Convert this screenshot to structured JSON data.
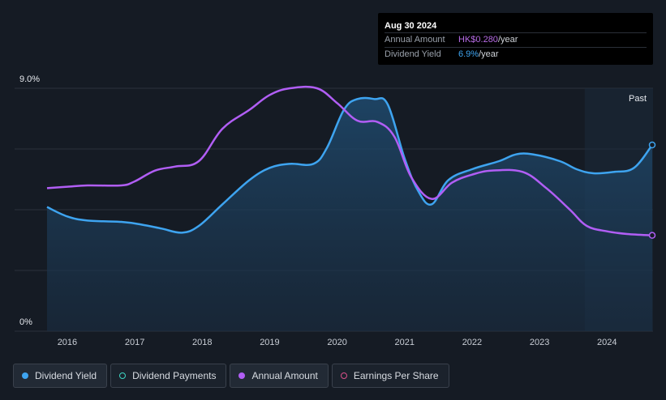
{
  "tooltip": {
    "date": "Aug 30 2024",
    "amount_label": "Annual Amount",
    "amount_value": "HK$0.280",
    "amount_unit": "/year",
    "yield_label": "Dividend Yield",
    "yield_value": "6.9%",
    "yield_unit": "/year"
  },
  "legend": [
    {
      "label": "Dividend Yield"
    },
    {
      "label": "Dividend Payments"
    },
    {
      "label": "Annual Amount"
    },
    {
      "label": "Earnings Per Share"
    }
  ],
  "colors": {
    "yield": "#3ea4f0",
    "amount": "#b15ef5",
    "grid": "#2a313c",
    "past_region": "#1c2a3a"
  },
  "chart_data": {
    "type": "line",
    "title": "",
    "xlabel": "",
    "ylabel": "",
    "ylim": [
      0,
      9
    ],
    "y_tick_labels": [
      "0%",
      "9.0%"
    ],
    "x_tick_labels": [
      "2016",
      "2017",
      "2018",
      "2019",
      "2020",
      "2021",
      "2022",
      "2023",
      "2024"
    ],
    "x_tick_values": [
      2016,
      2017,
      2018,
      2019,
      2020,
      2021,
      2022,
      2023,
      2024
    ],
    "xlim": [
      2015.58,
      2024.67
    ],
    "past_label": "Past",
    "past_start": 2023.67,
    "series": [
      {
        "name": "Dividend Yield",
        "unit": "%",
        "points": [
          [
            2015.7,
            4.6
          ],
          [
            2016.0,
            4.25
          ],
          [
            2016.3,
            4.1
          ],
          [
            2016.8,
            4.05
          ],
          [
            2017.1,
            3.95
          ],
          [
            2017.4,
            3.8
          ],
          [
            2017.7,
            3.65
          ],
          [
            2017.95,
            3.9
          ],
          [
            2018.3,
            4.7
          ],
          [
            2018.7,
            5.6
          ],
          [
            2019.0,
            6.05
          ],
          [
            2019.3,
            6.2
          ],
          [
            2019.65,
            6.2
          ],
          [
            2019.85,
            6.8
          ],
          [
            2020.1,
            8.2
          ],
          [
            2020.3,
            8.6
          ],
          [
            2020.55,
            8.6
          ],
          [
            2020.75,
            8.4
          ],
          [
            2021.0,
            6.4
          ],
          [
            2021.2,
            5.2
          ],
          [
            2021.4,
            4.7
          ],
          [
            2021.65,
            5.6
          ],
          [
            2022.0,
            6.0
          ],
          [
            2022.4,
            6.3
          ],
          [
            2022.65,
            6.55
          ],
          [
            2022.9,
            6.55
          ],
          [
            2023.3,
            6.3
          ],
          [
            2023.55,
            6.0
          ],
          [
            2023.8,
            5.85
          ],
          [
            2024.1,
            5.9
          ],
          [
            2024.4,
            6.05
          ],
          [
            2024.67,
            6.9
          ]
        ]
      },
      {
        "name": "Annual Amount",
        "unit": "%",
        "points": [
          [
            2015.7,
            5.3
          ],
          [
            2016.0,
            5.35
          ],
          [
            2016.3,
            5.4
          ],
          [
            2016.8,
            5.4
          ],
          [
            2017.0,
            5.55
          ],
          [
            2017.3,
            5.95
          ],
          [
            2017.6,
            6.1
          ],
          [
            2017.95,
            6.3
          ],
          [
            2018.3,
            7.5
          ],
          [
            2018.7,
            8.2
          ],
          [
            2019.0,
            8.75
          ],
          [
            2019.3,
            9.0
          ],
          [
            2019.7,
            9.0
          ],
          [
            2020.0,
            8.45
          ],
          [
            2020.3,
            7.8
          ],
          [
            2020.6,
            7.75
          ],
          [
            2020.85,
            7.2
          ],
          [
            2021.1,
            5.7
          ],
          [
            2021.4,
            4.9
          ],
          [
            2021.7,
            5.5
          ],
          [
            2022.0,
            5.8
          ],
          [
            2022.3,
            5.95
          ],
          [
            2022.75,
            5.9
          ],
          [
            2023.1,
            5.3
          ],
          [
            2023.45,
            4.5
          ],
          [
            2023.7,
            3.9
          ],
          [
            2024.0,
            3.7
          ],
          [
            2024.3,
            3.6
          ],
          [
            2024.67,
            3.55
          ]
        ]
      }
    ]
  }
}
